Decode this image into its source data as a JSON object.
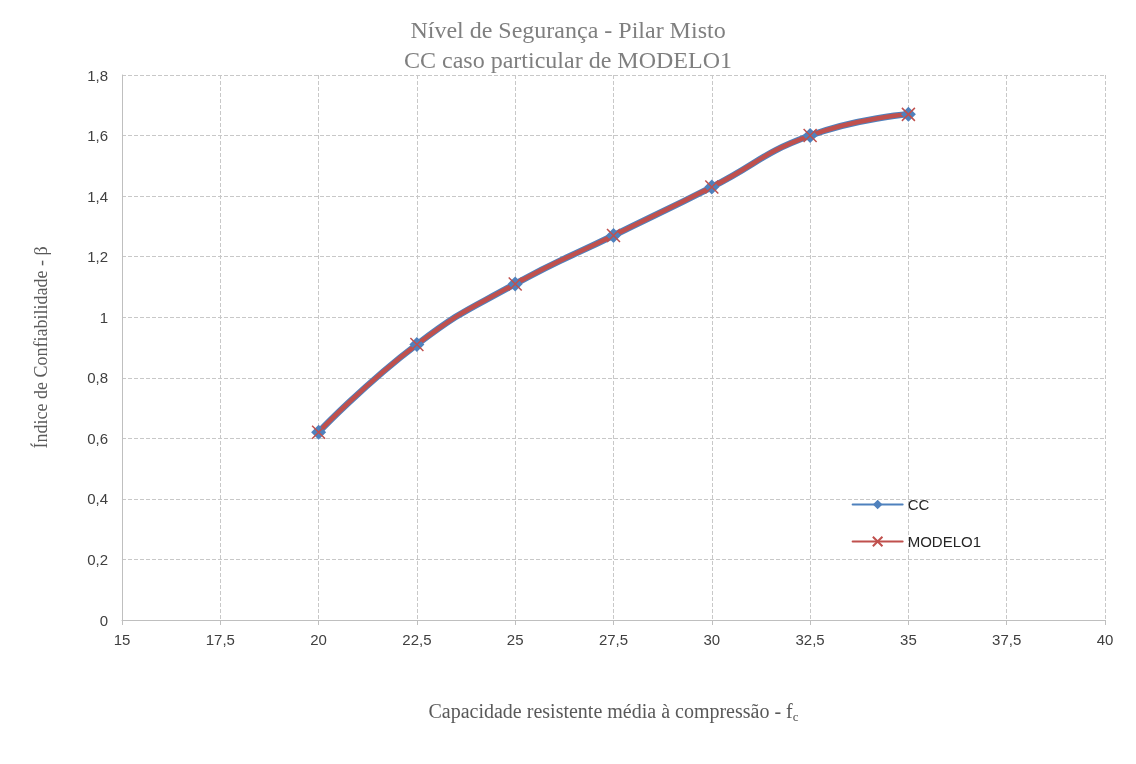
{
  "chart_data": {
    "type": "line",
    "title": "Nível de Segurança - Pilar Misto",
    "subtitle": "CC caso particular de MODELO1",
    "xlabel": "Capacidade resistente média à compressão - f$_{c}$",
    "ylabel": "Índice de Confiabilidade - β",
    "x": [
      20,
      22.5,
      25,
      27.5,
      30,
      32.5,
      35
    ],
    "series": [
      {
        "name": "CC",
        "color": "#4f81bd",
        "marker": "diamond",
        "values": [
          0.62,
          0.91,
          1.11,
          1.27,
          1.43,
          1.6,
          1.67
        ]
      },
      {
        "name": "MODELO1",
        "color": "#c0504d",
        "marker": "cross",
        "values": [
          0.62,
          0.91,
          1.11,
          1.27,
          1.43,
          1.6,
          1.67
        ]
      }
    ],
    "xlim": [
      15,
      40
    ],
    "xticks": [
      15,
      {
        "value": 17.5,
        "label": "17,5"
      },
      20,
      {
        "value": 22.5,
        "label": "22,5"
      },
      25,
      {
        "value": 27.5,
        "label": "27,5"
      },
      30,
      {
        "value": 32.5,
        "label": "32,5"
      },
      35,
      {
        "value": 37.5,
        "label": "37,5"
      },
      40
    ],
    "ylim": [
      0,
      1.8
    ],
    "yticks": [
      0,
      {
        "value": 0.2,
        "label": "0,2"
      },
      {
        "value": 0.4,
        "label": "0,4"
      },
      {
        "value": 0.6,
        "label": "0,6"
      },
      {
        "value": 0.8,
        "label": "0,8"
      },
      1,
      {
        "value": 1.2,
        "label": "1,2"
      },
      {
        "value": 1.4,
        "label": "1,4"
      },
      {
        "value": 1.6,
        "label": "1,6"
      },
      {
        "value": 1.8,
        "label": "1,8"
      }
    ],
    "grid": true,
    "legend": "bottom right",
    "line_style": "solid"
  }
}
